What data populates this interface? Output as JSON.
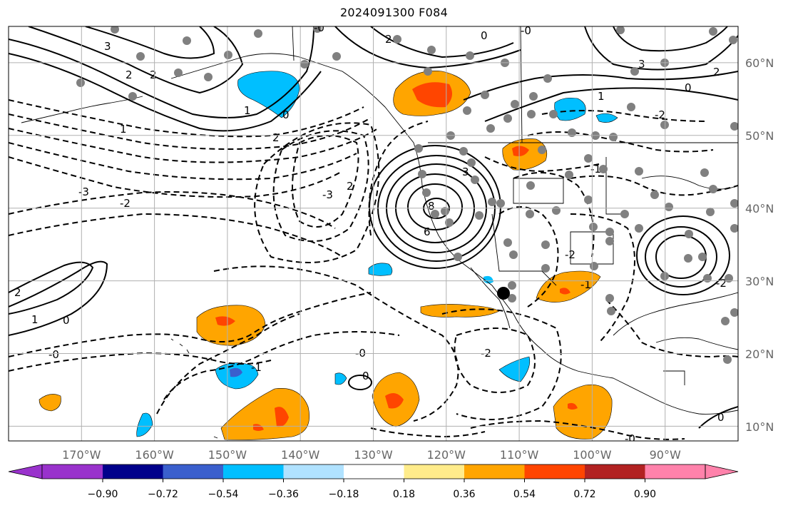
{
  "title": "2024091300 F084",
  "map": {
    "lon_range": [
      -180,
      -80
    ],
    "lat_range": [
      8,
      65
    ],
    "lon_ticks": [
      "170°W",
      "160°W",
      "150°W",
      "140°W",
      "130°W",
      "120°W",
      "110°W",
      "100°W",
      "90°W"
    ],
    "lat_ticks": [
      "60°N",
      "50°N",
      "40°N",
      "30°N",
      "20°N",
      "10°N"
    ],
    "grid": true
  },
  "colorbar": {
    "colors": [
      "#9932cc",
      "#00008b",
      "#3a5fcd",
      "#00bfff",
      "#b0e2ff",
      "#ffffff",
      "#ffec8b",
      "#ffa500",
      "#ff4500",
      "#b22222",
      "#ff82ab"
    ],
    "labels": [
      "−0.90",
      "−0.72",
      "−0.54",
      "−0.36",
      "−0.18",
      "0.18",
      "0.36",
      "0.54",
      "0.72",
      "0.90"
    ]
  },
  "contour_labels": [
    "8",
    "6",
    "3",
    "3",
    "2",
    "2",
    "2",
    "1",
    "0",
    "-0",
    "0",
    "-0",
    "2",
    "-2",
    "-3",
    "3",
    "-3",
    "2",
    "-2",
    "1",
    "-1",
    "-1",
    "-1",
    "1",
    "0",
    "-0",
    "0",
    "-0",
    "2",
    "-2",
    "0",
    "-0",
    "2",
    "1",
    "0",
    "-2",
    "-2"
  ],
  "colors": {
    "dashed": "#000000",
    "station_dot": "#808080"
  }
}
